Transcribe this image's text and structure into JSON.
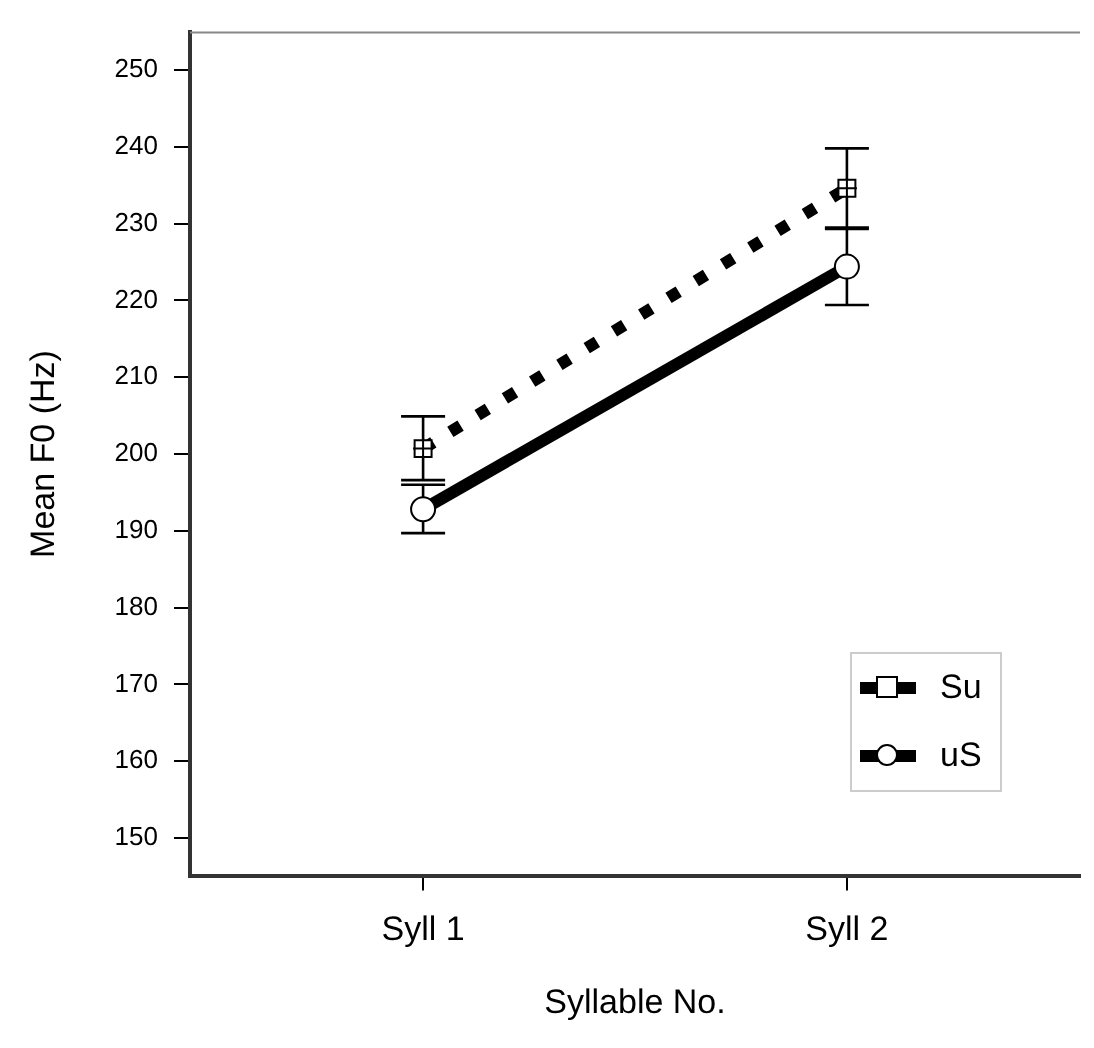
{
  "chart_data": {
    "type": "line",
    "xlabel": "Syllable No.",
    "ylabel": "Mean F0 (Hz)",
    "categories": [
      "Syll 1",
      "Syll 2"
    ],
    "ylim": [
      145,
      255
    ],
    "yticks": [
      150,
      160,
      170,
      180,
      190,
      200,
      210,
      220,
      230,
      240,
      250
    ],
    "grid": false,
    "legend": "bottom right",
    "series": [
      {
        "name": "Su",
        "color": "#000000",
        "values": [
          200.7,
          234.6
        ],
        "errors": [
          [
            196.6,
            204.9
          ],
          [
            229.5,
            239.8
          ]
        ],
        "marker": "square",
        "line_style": "dotted"
      },
      {
        "name": "uS",
        "color": "#000000",
        "values": [
          192.8,
          224.4
        ],
        "errors": [
          [
            189.7,
            196.0
          ],
          [
            219.4,
            229.3
          ]
        ],
        "marker": "circle",
        "line_style": "solid"
      }
    ]
  }
}
